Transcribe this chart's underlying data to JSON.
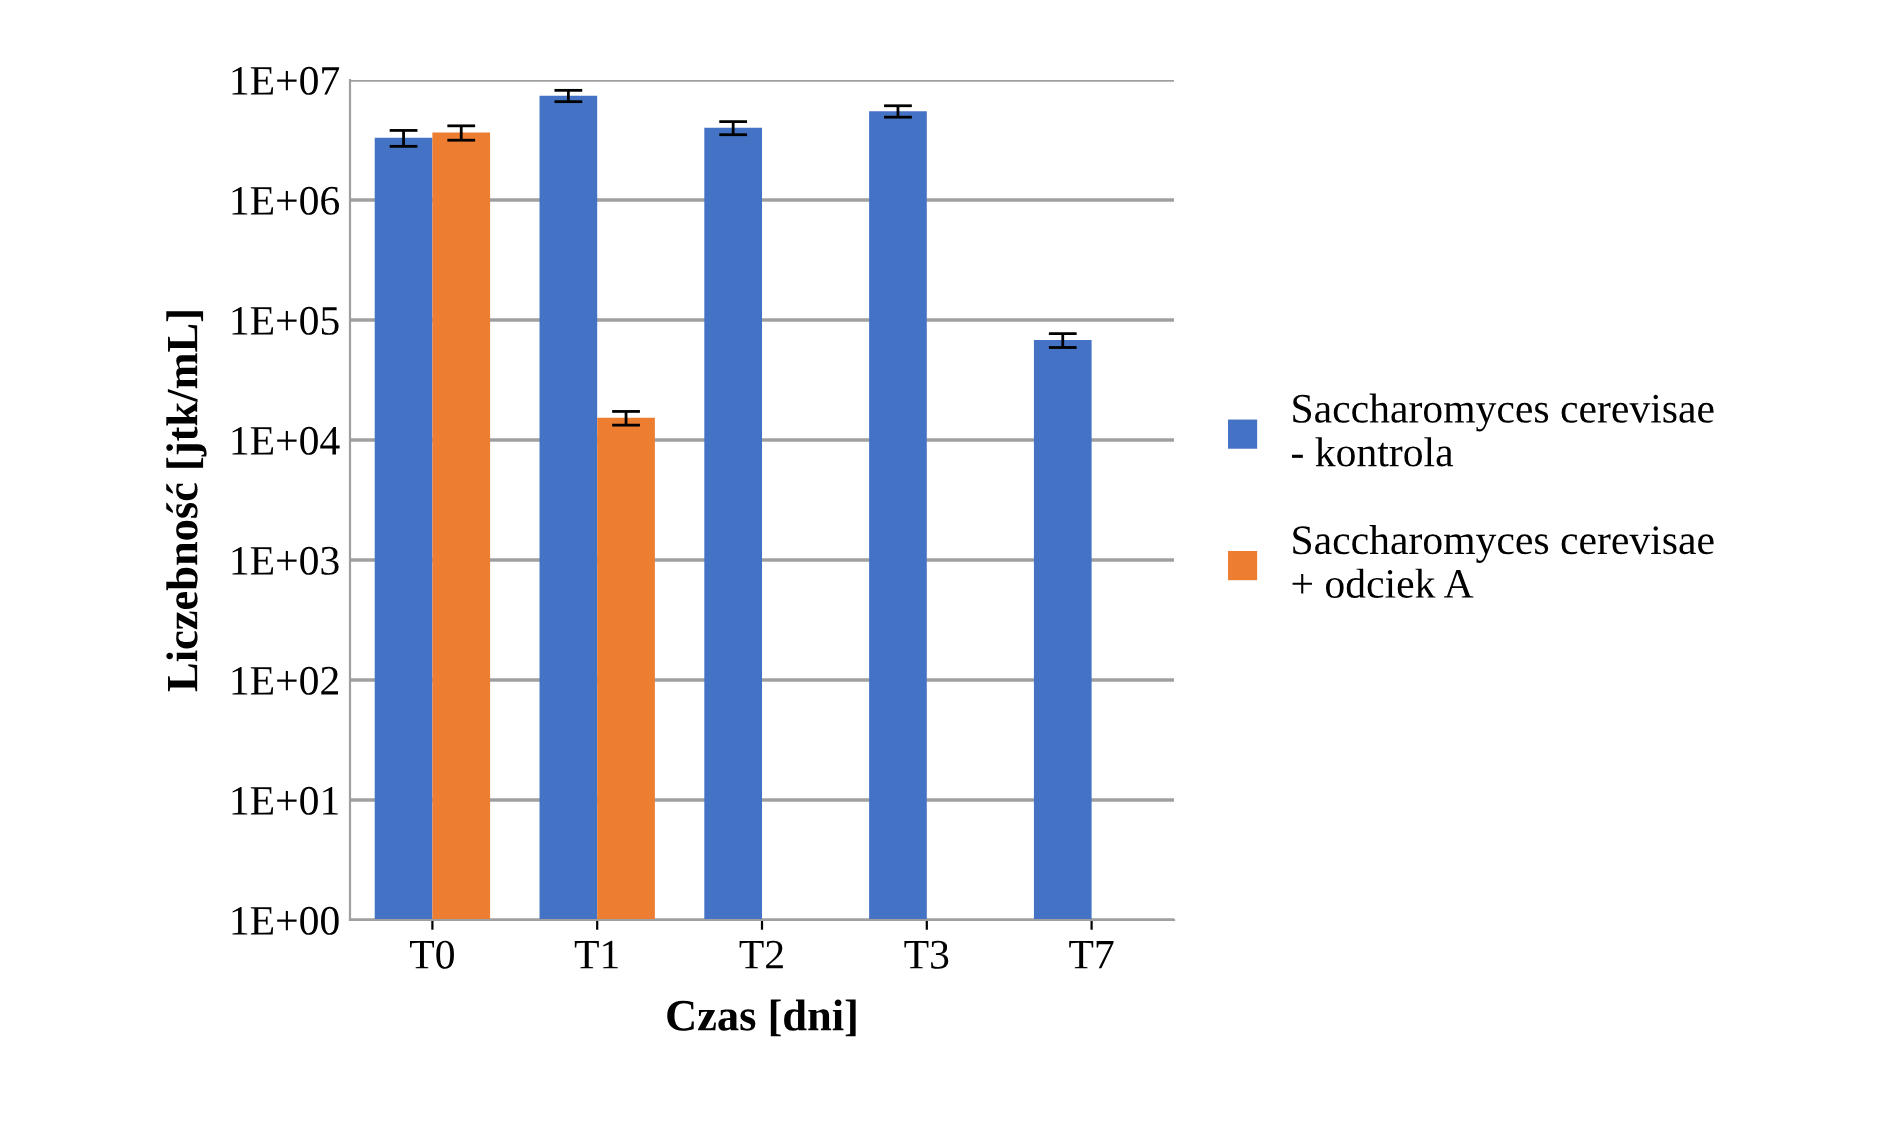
{
  "chart_data": {
    "type": "bar",
    "xlabel": "Czas [dni]",
    "ylabel": "Liczebność [jtk/mL]",
    "categories": [
      "T0",
      "T1",
      "T2",
      "T3",
      "T7"
    ],
    "series": [
      {
        "name": "Saccharomyces cerevisae\n- kontrola",
        "color": "#4472c4",
        "values": [
          3300000,
          7400000,
          4000000,
          5500000,
          68000
        ],
        "errors": [
          500000,
          800000,
          500000,
          600000,
          9000
        ]
      },
      {
        "name": "Saccharomyces cerevisae\n+ odciek A",
        "color": "#ed7d31",
        "values": [
          3650000,
          15300,
          null,
          null,
          null
        ],
        "errors": [
          500000,
          2000,
          null,
          null,
          null
        ]
      }
    ],
    "log": true,
    "ylim": [
      1,
      10000000
    ],
    "yticks": [
      {
        "value": 1,
        "label": "1E+00"
      },
      {
        "value": 10,
        "label": "1E+01"
      },
      {
        "value": 100,
        "label": "1E+02"
      },
      {
        "value": 1000,
        "label": "1E+03"
      },
      {
        "value": 10000,
        "label": "1E+04"
      },
      {
        "value": 100000,
        "label": "1E+05"
      },
      {
        "value": 1000000,
        "label": "1E+06"
      },
      {
        "value": 10000000,
        "label": "1E+07"
      }
    ],
    "grid": "y",
    "legend": "right"
  }
}
